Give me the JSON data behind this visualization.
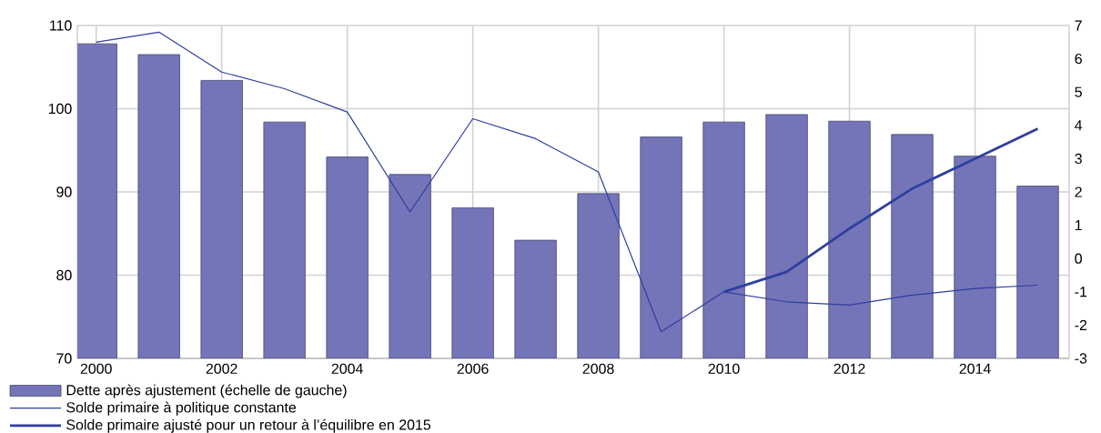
{
  "chart_data": {
    "type": "bar",
    "x": [
      2000,
      2001,
      2002,
      2003,
      2004,
      2005,
      2006,
      2007,
      2008,
      2009,
      2010,
      2011,
      2012,
      2013,
      2014,
      2015
    ],
    "xlim": [
      1999.7,
      2015.5
    ],
    "xticks": [
      2000,
      2002,
      2004,
      2006,
      2008,
      2010,
      2012,
      2014
    ],
    "ylim": [
      70,
      110
    ],
    "yticks": [
      70,
      80,
      90,
      100,
      110
    ],
    "y2lim": [
      -3,
      7
    ],
    "y2ticks": [
      -3,
      -2,
      -1,
      0,
      1,
      2,
      3,
      4,
      5,
      6,
      7
    ],
    "grid": true,
    "legend": "bottom",
    "series": [
      {
        "name": "Dette après ajustement (échelle de gauche)",
        "color": "#7475b8",
        "values": [
          107.8,
          106.5,
          103.4,
          98.4,
          94.2,
          92.1,
          88.1,
          84.2,
          89.8,
          96.6,
          98.4,
          99.3,
          98.5,
          96.9,
          94.3,
          90.7
        ]
      },
      {
        "name": "Solde primaire à politique constante",
        "type": "line",
        "axis": "y2",
        "color": "#2e3fa0",
        "values": [
          6.5,
          6.8,
          5.6,
          5.1,
          4.4,
          1.4,
          4.2,
          3.6,
          2.6,
          -2.2,
          -1.0,
          -1.3,
          -1.4,
          -1.1,
          -0.9,
          -0.8
        ]
      },
      {
        "name": "Solde primaire ajusté pour un retour à l’équilibre en 2015",
        "type": "line",
        "axis": "y2",
        "color": "#2e3fa0",
        "x": [
          2010,
          2011,
          2012,
          2013,
          2014,
          2015
        ],
        "values": [
          -1.0,
          -0.4,
          0.9,
          2.1,
          3.0,
          3.9
        ]
      }
    ]
  }
}
